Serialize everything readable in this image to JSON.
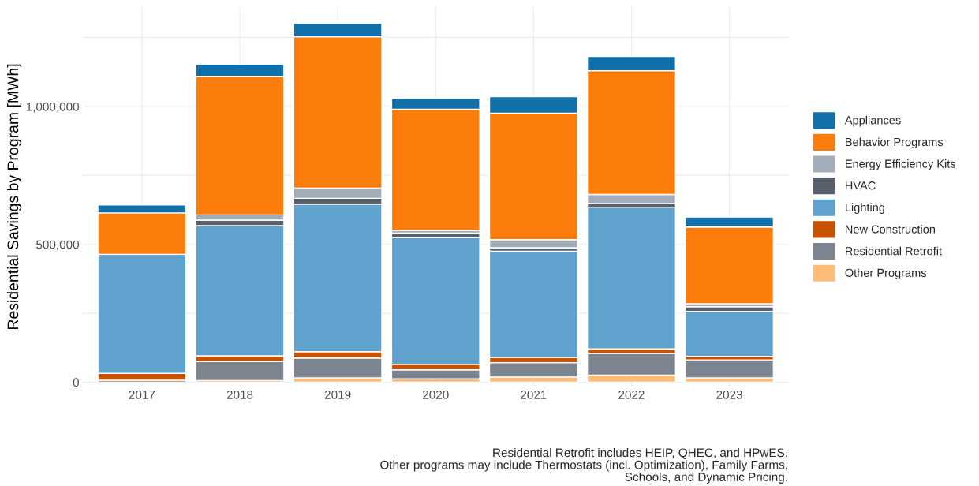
{
  "chart_data": {
    "type": "bar",
    "stacked": true,
    "ylabel": "Residential Savings by Program [MWh]",
    "categories": [
      "2017",
      "2018",
      "2019",
      "2020",
      "2021",
      "2022",
      "2023"
    ],
    "series": [
      {
        "name": "Other Programs",
        "color": "#ffbc79",
        "values": [
          0,
          6000,
          16000,
          12000,
          19000,
          26000,
          16000
        ]
      },
      {
        "name": "Residential Retrofit",
        "color": "#7b848f",
        "values": [
          7000,
          69000,
          72000,
          33000,
          52000,
          78000,
          65000
        ]
      },
      {
        "name": "New Construction",
        "color": "#c85200",
        "values": [
          25000,
          21000,
          23000,
          20000,
          19000,
          17000,
          13000
        ]
      },
      {
        "name": "Lighting",
        "color": "#5fa2ce",
        "values": [
          432000,
          472000,
          535000,
          460000,
          385000,
          514000,
          163000
        ]
      },
      {
        "name": "HVAC",
        "color": "#57606c",
        "values": [
          0,
          20000,
          21000,
          16000,
          13000,
          13000,
          17000
        ]
      },
      {
        "name": "Energy Efficiency Kits",
        "color": "#a3acb9",
        "values": [
          0,
          19000,
          37000,
          9000,
          29000,
          33000,
          11000
        ]
      },
      {
        "name": "Behavior Programs",
        "color": "#fc7d0b",
        "values": [
          150000,
          503000,
          549000,
          440000,
          459000,
          449000,
          278000
        ]
      },
      {
        "name": "Appliances",
        "color": "#1170aa",
        "values": [
          29000,
          44000,
          49000,
          39000,
          60000,
          52000,
          36000
        ]
      }
    ],
    "ylim": [
      -15000,
      1360000
    ],
    "yticks": [
      {
        "value": 0,
        "label": "0"
      },
      {
        "value": 250000,
        "label": null
      },
      {
        "value": 500000,
        "label": "500,000"
      },
      {
        "value": 750000,
        "label": null
      },
      {
        "value": 1000000,
        "label": "1,000,000"
      },
      {
        "value": 1250000,
        "label": null
      }
    ],
    "grid": true,
    "legend": "right",
    "annotations": [
      "Residential Retrofit includes HEIP, QHEC, and HPwES.\nOther programs may include Thermostats (incl. Optimization), Family Farms,\nSchools, and Dynamic Pricing."
    ]
  }
}
